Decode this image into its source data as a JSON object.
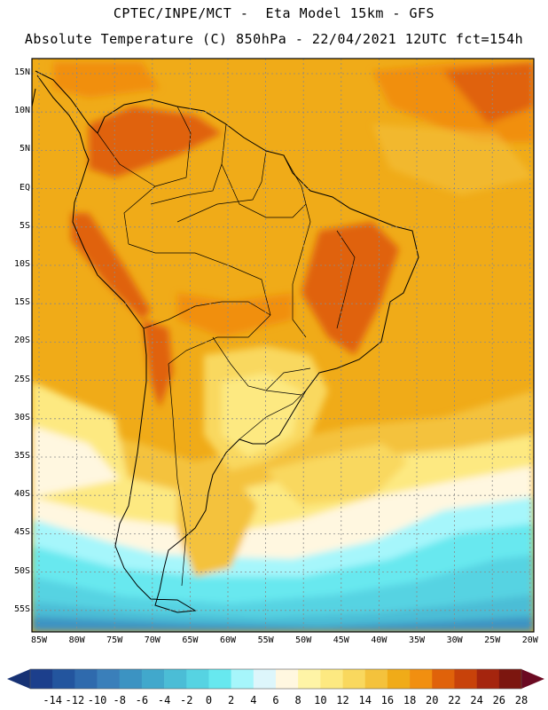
{
  "title": {
    "line1": "CPTEC/INPE/MCT -  Eta Model 15km - GFS",
    "line2": "Absolute Temperature (C) 850hPa - 22/04/2021 12UTC fct=154h"
  },
  "map": {
    "lat_labels": [
      "15N",
      "10N",
      "5N",
      "EQ",
      "5S",
      "10S",
      "15S",
      "20S",
      "25S",
      "30S",
      "35S",
      "40S",
      "45S",
      "50S",
      "55S"
    ],
    "lon_labels": [
      "85W",
      "80W",
      "75W",
      "70W",
      "65W",
      "60W",
      "55W",
      "50W",
      "45W",
      "40W",
      "35W",
      "30W",
      "25W",
      "20W"
    ]
  },
  "colorbar": {
    "labels": [
      "-14",
      "-12",
      "-10",
      "-8",
      "-6",
      "-4",
      "-2",
      "0",
      "2",
      "4",
      "6",
      "8",
      "10",
      "12",
      "14",
      "16",
      "18",
      "20",
      "22",
      "24",
      "26",
      "28"
    ],
    "colors": [
      "#1c3f8c",
      "#23559e",
      "#2f6aad",
      "#3a7fba",
      "#3c93c2",
      "#41a8cc",
      "#4bbdd6",
      "#56d3e2",
      "#67e8ef",
      "#a6f6fb",
      "#ddf6fb",
      "#fff7e0",
      "#fef4a6",
      "#fde981",
      "#f9d85e",
      "#f4c23c",
      "#f0ab18",
      "#f18f10",
      "#e0620a",
      "#c8420a",
      "#a5250e",
      "#7c160f"
    ],
    "low_arrow_color": "#173274",
    "high_arrow_color": "#6b0a22"
  }
}
